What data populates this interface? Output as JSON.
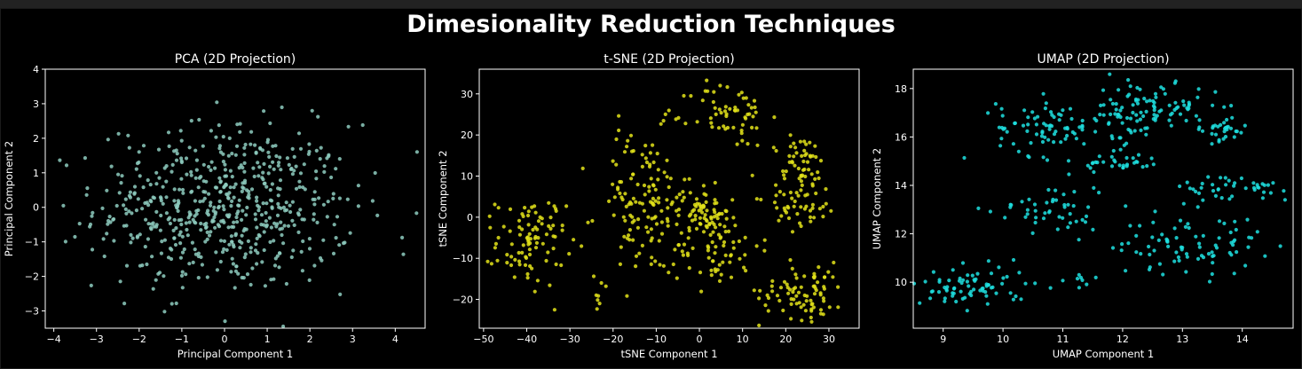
{
  "title": "Dimesionality Reduction Techniques",
  "colors": {
    "pca": "#8ecdbf",
    "tsne": "#e3e31a",
    "umap": "#1ee0e0"
  },
  "chart_data": [
    {
      "type": "scatter",
      "title": "PCA (2D Projection)",
      "xlabel": "Principal Component 1",
      "ylabel": "Principal Component 2",
      "xlim": [
        -4.2,
        4.7
      ],
      "ylim": [
        -3.5,
        4.0
      ],
      "xticks": [
        -4,
        -3,
        -2,
        -1,
        0,
        1,
        2,
        3,
        4
      ],
      "yticks": [
        -3,
        -2,
        -1,
        0,
        1,
        2,
        3,
        4
      ],
      "n_points": 600,
      "point_distribution": {
        "shape": "gaussian",
        "center": [
          0,
          0
        ],
        "std": [
          1.5,
          1.2
        ]
      },
      "color": "#8ecdbf"
    },
    {
      "type": "scatter",
      "title": "t-SNE (2D Projection)",
      "xlabel": "tSNE Component 1",
      "ylabel": "tSNE Component 2",
      "xlim": [
        -51,
        37
      ],
      "ylim": [
        -27,
        36
      ],
      "xticks": [
        -50,
        -40,
        -30,
        -20,
        -10,
        0,
        10,
        20,
        30
      ],
      "yticks": [
        -20,
        -10,
        0,
        10,
        20,
        30
      ],
      "color": "#e3e31a",
      "clusters": [
        {
          "center": [
            -39,
            -6
          ],
          "std": [
            4.0,
            5.5
          ],
          "n": 95
        },
        {
          "center": [
            -13,
            3
          ],
          "std": [
            5.5,
            9.0
          ],
          "n": 135
        },
        {
          "center": [
            1,
            2
          ],
          "std": [
            3.0,
            3.5
          ],
          "n": 60
        },
        {
          "center": [
            4,
            -7
          ],
          "std": [
            5.0,
            5.0
          ],
          "n": 70
        },
        {
          "center": [
            7,
            25
          ],
          "std": [
            4.5,
            4.0
          ],
          "n": 60
        },
        {
          "center": [
            23,
            15
          ],
          "std": [
            4.0,
            2.5
          ],
          "n": 30
        },
        {
          "center": [
            24,
            5
          ],
          "std": [
            4.0,
            4.0
          ],
          "n": 65
        },
        {
          "center": [
            24,
            -18
          ],
          "std": [
            5.0,
            3.5
          ],
          "n": 80
        },
        {
          "center": [
            -24,
            -20
          ],
          "std": [
            1.0,
            1.0
          ],
          "n": 5
        }
      ]
    },
    {
      "type": "scatter",
      "title": "UMAP (2D Projection)",
      "xlabel": "UMAP Component 1",
      "ylabel": "UMAP Component 2",
      "xlim": [
        8.5,
        14.85
      ],
      "ylim": [
        8.1,
        18.8
      ],
      "xticks": [
        9,
        10,
        11,
        12,
        13,
        14
      ],
      "yticks": [
        10,
        12,
        14,
        16,
        18
      ],
      "color": "#1ee0e0",
      "clusters": [
        {
          "center": [
            10.8,
            16.4
          ],
          "std": [
            0.45,
            0.6
          ],
          "n": 80
        },
        {
          "center": [
            12.1,
            16.9
          ],
          "std": [
            0.3,
            0.8
          ],
          "n": 60
        },
        {
          "center": [
            12.8,
            17.3
          ],
          "std": [
            0.45,
            0.4
          ],
          "n": 50
        },
        {
          "center": [
            13.6,
            16.3
          ],
          "std": [
            0.25,
            0.25
          ],
          "n": 30
        },
        {
          "center": [
            12.0,
            14.9
          ],
          "std": [
            0.35,
            0.2
          ],
          "n": 25
        },
        {
          "center": [
            10.8,
            13.0
          ],
          "std": [
            0.5,
            0.55
          ],
          "n": 50
        },
        {
          "center": [
            9.5,
            9.8
          ],
          "std": [
            0.45,
            0.45
          ],
          "n": 75
        },
        {
          "center": [
            13.9,
            13.9
          ],
          "std": [
            0.55,
            0.3
          ],
          "n": 45
        },
        {
          "center": [
            13.1,
            11.5
          ],
          "std": [
            0.6,
            0.6
          ],
          "n": 80
        },
        {
          "center": [
            11.4,
            10.2
          ],
          "std": [
            0.25,
            0.2
          ],
          "n": 8
        }
      ]
    }
  ]
}
